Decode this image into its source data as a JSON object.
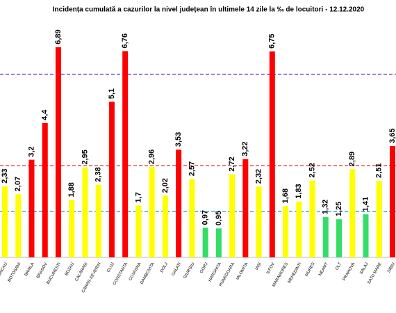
{
  "chart_data": {
    "type": "bar",
    "title": "Incidența cumulată a cazurilor la nivel județean în ultimele 14 zile   la ‰ de locuitori  - 12.12.2020",
    "categories": [
      "BACAU",
      "BOTOSANI",
      "BRAILA",
      "BRASOV",
      "BUCURESTI",
      "BUZAU",
      "CALARASI",
      "CARAS-SEVERIN",
      "CLUJ",
      "CONSTANTA",
      "COVASNA",
      "DAMBOVITA",
      "DOLJ",
      "GALATI",
      "GIURGIU",
      "GORJ",
      "HARGHITA",
      "HUNEDOARA",
      "IALOMITA",
      "IASI",
      "ILFOV",
      "MARAMURES",
      "MEHEDINTI",
      "MURES",
      "NEAMT",
      "OLT",
      "PRAHOVA",
      "SALAJ",
      "SATU MARE",
      "SIBIU"
    ],
    "values": [
      2.33,
      2.07,
      3.2,
      4.4,
      6.89,
      1.88,
      2.95,
      2.38,
      5.1,
      6.76,
      1.7,
      2.96,
      2.02,
      3.53,
      2.57,
      0.97,
      0.95,
      2.72,
      3.22,
      2.32,
      6.75,
      1.68,
      1.83,
      2.52,
      1.32,
      1.25,
      2.89,
      1.41,
      2.51,
      3.65
    ],
    "value_labels": [
      "2,33",
      "2,07",
      "3,2",
      "4,4",
      "6,89",
      "1,88",
      "2,95",
      "2,38",
      "5,1",
      "6,76",
      "1,7",
      "2,96",
      "2,02",
      "3,53",
      "2,57",
      "0,97",
      "0,95",
      "2,72",
      "3,22",
      "2,32",
      "6,75",
      "1,68",
      "1,83",
      "2,52",
      "1,32",
      "1,25",
      "2,89",
      "1,41",
      "2,51",
      "3,65"
    ],
    "colors": [
      "#ffff00",
      "#ffff00",
      "#ff0000",
      "#ff0000",
      "#ff0000",
      "#ffff00",
      "#ffff00",
      "#ffff00",
      "#ff0000",
      "#ff0000",
      "#ffff00",
      "#ffff00",
      "#ffff00",
      "#ff0000",
      "#ffff00",
      "#33dd66",
      "#33dd66",
      "#ffff00",
      "#ff0000",
      "#ffff00",
      "#ff0000",
      "#ffff00",
      "#ffff00",
      "#ffff00",
      "#33dd66",
      "#33dd66",
      "#ffff00",
      "#33dd66",
      "#ffff00",
      "#ff0000"
    ],
    "reference_lines": [
      {
        "value": 1.5,
        "color": "#33aacc"
      },
      {
        "value": 3,
        "color": "#dd2222"
      },
      {
        "value": 6,
        "color": "#7733bb"
      }
    ],
    "ylim": [
      0,
      7.5
    ]
  }
}
